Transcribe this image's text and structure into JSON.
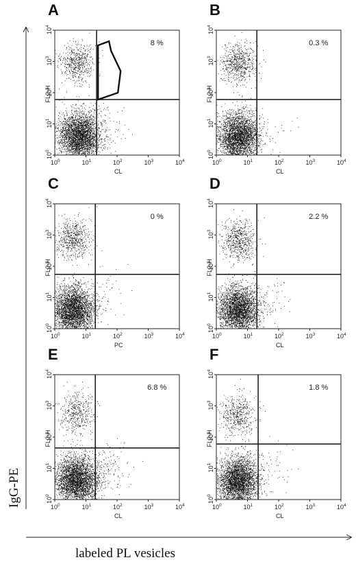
{
  "figure": {
    "x_axis_label": "labeled PL vesicles",
    "y_axis_label": "IgG-PE"
  },
  "chart_data": [
    {
      "type": "scatter",
      "panel": "A",
      "xlabel": "CL",
      "ylabel": "FL2-H",
      "xscale": "log",
      "yscale": "log",
      "xlim": [
        1,
        10000
      ],
      "ylim": [
        1,
        10000
      ],
      "x_ticks": [
        "10",
        "10",
        "10",
        "10",
        "10"
      ],
      "tick_exponents": [
        "0",
        "1",
        "2",
        "3",
        "4"
      ],
      "quadrant_x": 22,
      "quadrant_y": 60,
      "percentage": "8 %",
      "gate": "polygon",
      "gate_region": {
        "x": [
          20,
          130
        ],
        "y": [
          60,
          4000
        ]
      },
      "populations": [
        {
          "name": "",
          "x_center": 6,
          "y_center": 4,
          "count": 3200
        },
        {
          "name": "",
          "x_center": 5,
          "y_center": 900,
          "count": 550
        },
        {
          "name": "",
          "x_center": 45,
          "y_center": 8,
          "count": 60
        }
      ]
    },
    {
      "type": "scatter",
      "panel": "B",
      "xlabel": "CL",
      "ylabel": "FL2-H",
      "xscale": "log",
      "yscale": "log",
      "xlim": [
        1,
        10000
      ],
      "ylim": [
        1,
        10000
      ],
      "x_ticks": [
        "10",
        "10",
        "10",
        "10",
        "10"
      ],
      "tick_exponents": [
        "0",
        "1",
        "2",
        "3",
        "4"
      ],
      "quadrant_x": 20,
      "quadrant_y": 60,
      "percentage": "0.3 %",
      "populations": [
        {
          "name": "",
          "x_center": 5,
          "y_center": 4,
          "count": 3000
        },
        {
          "name": "",
          "x_center": 5,
          "y_center": 900,
          "count": 650
        },
        {
          "name": "",
          "x_center": 60,
          "y_center": 8,
          "count": 20
        }
      ]
    },
    {
      "type": "scatter",
      "panel": "C",
      "xlabel": "PC",
      "ylabel": "FL2-H",
      "xscale": "log",
      "yscale": "log",
      "xlim": [
        1,
        10000
      ],
      "ylim": [
        1,
        10000
      ],
      "x_ticks": [
        "10",
        "10",
        "10",
        "10",
        "10"
      ],
      "tick_exponents": [
        "0",
        "1",
        "2",
        "3",
        "4"
      ],
      "quadrant_x": 20,
      "quadrant_y": 55,
      "percentage": "0 %",
      "populations": [
        {
          "name": "",
          "x_center": 4,
          "y_center": 4,
          "count": 3200
        },
        {
          "name": "",
          "x_center": 4,
          "y_center": 700,
          "count": 600
        },
        {
          "name": "",
          "x_center": 50,
          "y_center": 15,
          "count": 40
        }
      ]
    },
    {
      "type": "scatter",
      "panel": "D",
      "xlabel": "CL",
      "ylabel": "FL2-H",
      "xscale": "log",
      "yscale": "log",
      "xlim": [
        1,
        10000
      ],
      "ylim": [
        1,
        10000
      ],
      "x_ticks": [
        "10",
        "10",
        "10",
        "10",
        "10"
      ],
      "tick_exponents": [
        "0",
        "1",
        "2",
        "3",
        "4"
      ],
      "quadrant_x": 20,
      "quadrant_y": 55,
      "percentage": "2.2 %",
      "populations": [
        {
          "name": "",
          "x_center": 5,
          "y_center": 4,
          "count": 3000
        },
        {
          "name": "",
          "x_center": 5,
          "y_center": 700,
          "count": 600
        },
        {
          "name": "",
          "x_center": 60,
          "y_center": 10,
          "count": 50
        }
      ]
    },
    {
      "type": "scatter",
      "panel": "E",
      "xlabel": "CL",
      "ylabel": "FL2-H",
      "xscale": "log",
      "yscale": "log",
      "xlim": [
        1,
        10000
      ],
      "ylim": [
        1,
        10000
      ],
      "x_ticks": [
        "10",
        "10",
        "10",
        "10",
        "10"
      ],
      "tick_exponents": [
        "0",
        "1",
        "2",
        "3",
        "4"
      ],
      "quadrant_x": 20,
      "quadrant_y": 45,
      "percentage": "6.8 %",
      "populations": [
        {
          "name": "",
          "x_center": 5,
          "y_center": 4,
          "count": 3300
        },
        {
          "name": "",
          "x_center": 5,
          "y_center": 600,
          "count": 450
        },
        {
          "name": "",
          "x_center": 50,
          "y_center": 10,
          "count": 140
        }
      ]
    },
    {
      "type": "scatter",
      "panel": "F",
      "xlabel": "CL",
      "ylabel": "FL2-H",
      "xscale": "log",
      "yscale": "log",
      "xlim": [
        1,
        10000
      ],
      "ylim": [
        1,
        10000
      ],
      "x_ticks": [
        "10",
        "10",
        "10",
        "10",
        "10"
      ],
      "tick_exponents": [
        "0",
        "1",
        "2",
        "3",
        "4"
      ],
      "quadrant_x": 22,
      "quadrant_y": 60,
      "percentage": "1.8 %",
      "populations": [
        {
          "name": "",
          "x_center": 5,
          "y_center": 4,
          "count": 3200
        },
        {
          "name": "",
          "x_center": 5,
          "y_center": 500,
          "count": 480
        },
        {
          "name": "",
          "x_center": 60,
          "y_center": 10,
          "count": 50
        }
      ]
    }
  ]
}
